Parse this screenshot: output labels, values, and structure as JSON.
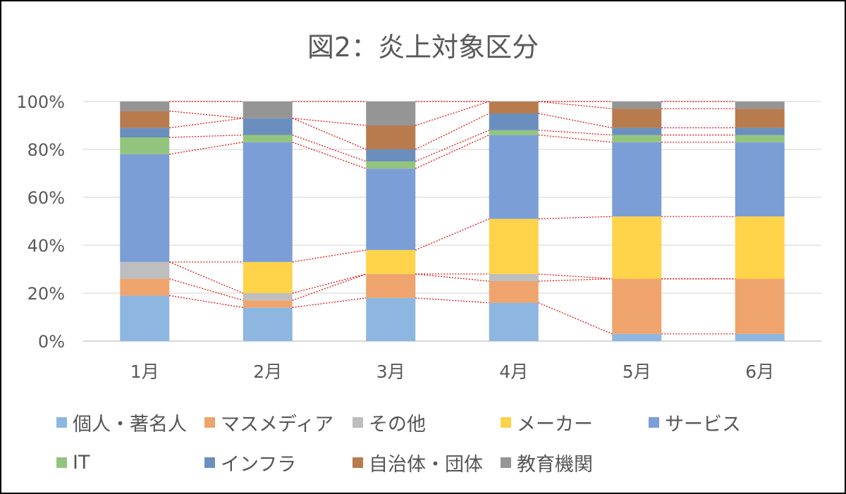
{
  "chart_data": {
    "type": "bar",
    "stacked": "percent",
    "title": "図2：炎上対象区分",
    "xlabel": "",
    "ylabel": "",
    "ylim": [
      0,
      100
    ],
    "yticks": [
      "0%",
      "20%",
      "40%",
      "60%",
      "80%",
      "100%"
    ],
    "categories": [
      "1月",
      "2月",
      "3月",
      "4月",
      "5月",
      "6月"
    ],
    "series": [
      {
        "name": "個人・著名人",
        "color": "#8DB7E0",
        "values": [
          19,
          14,
          18,
          16,
          3,
          3
        ]
      },
      {
        "name": "マスメディア",
        "color": "#EEA46C",
        "values": [
          7,
          3,
          10,
          9,
          23,
          23
        ]
      },
      {
        "name": "その他",
        "color": "#BEBEBE",
        "values": [
          7,
          3,
          0,
          3,
          0,
          0
        ]
      },
      {
        "name": "メーカー",
        "color": "#FFD34A",
        "values": [
          0,
          13,
          10,
          23,
          26,
          26
        ]
      },
      {
        "name": "サービス",
        "color": "#7C9ED6",
        "values": [
          45,
          50,
          34,
          35,
          31,
          31
        ]
      },
      {
        "name": "IT",
        "color": "#93C47D",
        "values": [
          7,
          3,
          3,
          2,
          3,
          3
        ]
      },
      {
        "name": "インフラ",
        "color": "#6A8FBF",
        "values": [
          4,
          7,
          5,
          7,
          3,
          3
        ]
      },
      {
        "name": "自治体・団体",
        "color": "#B87B4E",
        "values": [
          7,
          0,
          10,
          5,
          8,
          8
        ]
      },
      {
        "name": "教育機関",
        "color": "#959595",
        "values": [
          4,
          7,
          10,
          0,
          3,
          3
        ]
      }
    ],
    "legend_position": "bottom",
    "series_lines": true,
    "grid": true
  }
}
